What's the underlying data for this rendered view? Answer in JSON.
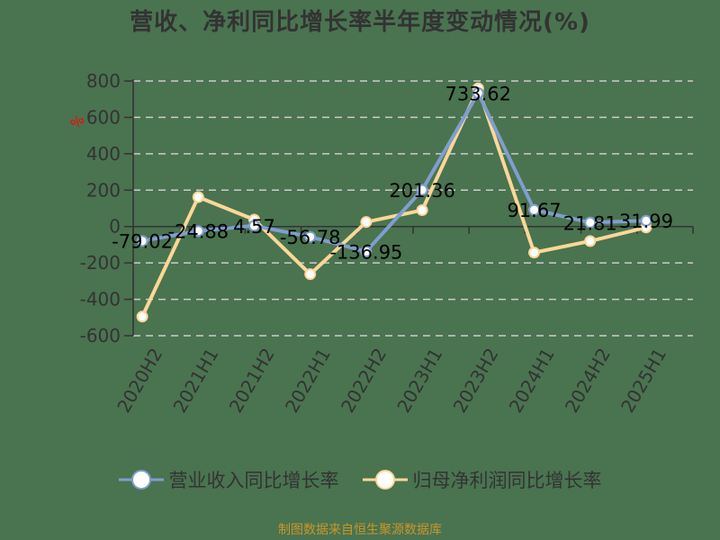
{
  "title": "营收、净利同比增长率半年度变动情况(%)",
  "footer": "制图数据来自恒生聚源数据库",
  "colors": {
    "background": "#4a7350",
    "revenue": "#7f9ecf",
    "profit": "#fcd796",
    "axis": "#333333",
    "grid": "#cccccc",
    "unit": "#ff0000",
    "footer": "#c9962a"
  },
  "legend": [
    {
      "name": "营业收入同比增长率",
      "color": "#7f9ecf"
    },
    {
      "name": "归母净利润同比增长率",
      "color": "#fcd796"
    }
  ],
  "chart_data": {
    "type": "line",
    "title": "营收、净利同比增长率半年度变动情况(%)",
    "xlabel": "",
    "ylabel": "%",
    "ylim": [
      -600,
      800
    ],
    "yticks": [
      800,
      600,
      400,
      200,
      0,
      -200,
      -400,
      -600
    ],
    "grid": true,
    "legend_position": "bottom",
    "categories": [
      "2020H2",
      "2021H1",
      "2021H2",
      "2022H1",
      "2022H2",
      "2023H1",
      "2023H2",
      "2024H1",
      "2024H2",
      "2025H1"
    ],
    "series": [
      {
        "name": "营业收入同比增长率",
        "values": [
          -79.02,
          -24.88,
          4.57,
          -56.78,
          -136.95,
          201.36,
          733.62,
          91.67,
          21.81,
          31.99
        ],
        "labels": [
          "-79.02",
          "-24.88",
          "4.57",
          "-56.78",
          "-136.95",
          "201.36",
          "733.62",
          "91.67",
          "21.81",
          "31.99"
        ]
      },
      {
        "name": "归母净利润同比增长率",
        "values": [
          -495,
          162,
          38,
          -262,
          25,
          90,
          760,
          -143,
          -80,
          -5
        ]
      }
    ]
  }
}
